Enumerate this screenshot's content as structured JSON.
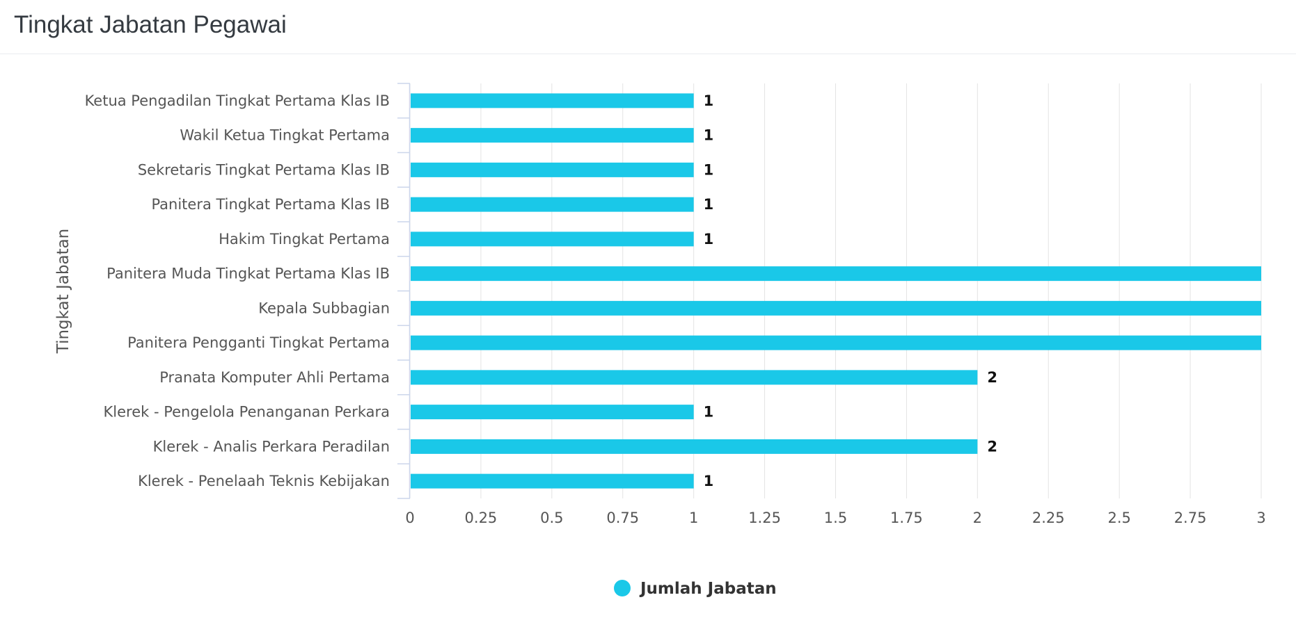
{
  "header": {
    "title": "Tingkat Jabatan Pegawai"
  },
  "colors": {
    "bar": "#1ac8e8",
    "grid": "#e3e3e3",
    "axis": "#ccd6eb"
  },
  "chart_data": {
    "type": "bar",
    "orientation": "horizontal",
    "title": "",
    "xlabel": "",
    "ylabel": "Tingkat Jabatan",
    "xlim": [
      0,
      3
    ],
    "ticks": [
      "0",
      "0.25",
      "0.5",
      "0.75",
      "1",
      "1.25",
      "1.5",
      "1.75",
      "2",
      "2.25",
      "2.5",
      "2.75",
      "3"
    ],
    "grid": true,
    "legend_position": "bottom-center",
    "categories": [
      "Ketua Pengadilan Tingkat Pertama Klas IB",
      "Wakil Ketua Tingkat Pertama",
      "Sekretaris Tingkat Pertama Klas IB",
      "Panitera Tingkat Pertama Klas IB",
      "Hakim Tingkat Pertama",
      "Panitera Muda Tingkat Pertama Klas IB",
      "Kepala Subbagian",
      "Panitera Pengganti Tingkat Pertama",
      "Pranata Komputer Ahli Pertama",
      "Klerek - Pengelola Penanganan Perkara",
      "Klerek - Analis Perkara Peradilan",
      "Klerek - Penelaah Teknis Kebijakan"
    ],
    "series": [
      {
        "name": "Jumlah Jabatan",
        "values": [
          1,
          1,
          1,
          1,
          1,
          3,
          3,
          3,
          2,
          1,
          2,
          1
        ],
        "data_labels": [
          "1",
          "1",
          "1",
          "1",
          "1",
          "",
          "",
          "",
          "2",
          "1",
          "2",
          "1"
        ]
      }
    ]
  }
}
